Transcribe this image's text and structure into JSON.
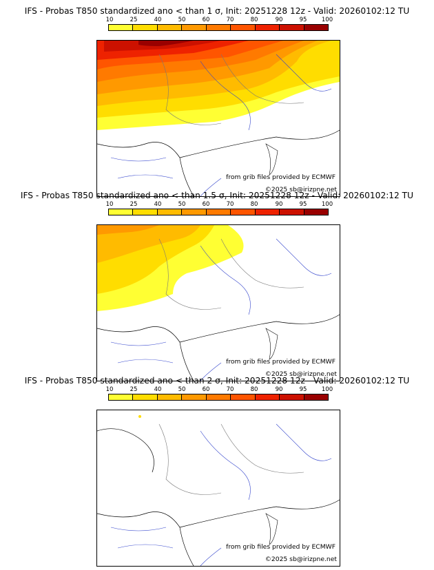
{
  "colorbar": {
    "ticks": [
      "10",
      "25",
      "40",
      "50",
      "60",
      "70",
      "80",
      "90",
      "95",
      "100"
    ],
    "colors": [
      "#ffff33",
      "#ffdd00",
      "#ffbb00",
      "#ff9900",
      "#ff7a00",
      "#ff5500",
      "#ee2200",
      "#cc1100",
      "#990000",
      "#660000"
    ]
  },
  "credits": {
    "provider": "from grib files provided by ECMWF",
    "copyright": "©2025 sb@irizpne.net"
  },
  "panels": [
    {
      "title": "IFS - Probas T850  standardized ano < than 1 σ, Init: 20251228 12z - Valid: 20260102:12 TU"
    },
    {
      "title": "IFS - Probas T850  standardized ano < than 1.5 σ, Init: 20251228 12z - Valid: 20260102:12 TU"
    },
    {
      "title": "IFS - Probas T850  standardized ano < than 2 σ, Init: 20251228 12z - Valid: 20260102:12 TU"
    }
  ]
}
